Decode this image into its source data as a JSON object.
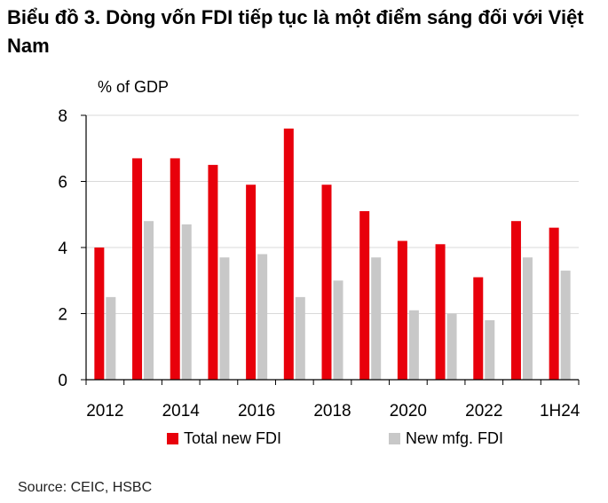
{
  "title": "Biểu đồ 3. Dòng vốn FDI tiếp tục là một điểm sáng đối với Việt Nam",
  "source": "Source: CEIC, HSBC",
  "chart_data": {
    "type": "bar",
    "ylabel": "% of GDP",
    "ylim": [
      0,
      8
    ],
    "yticks": [
      "0",
      "2",
      "4",
      "6",
      "8"
    ],
    "grid": true,
    "legend_position": "bottom",
    "categories": [
      "2012",
      "2013",
      "2014",
      "2015",
      "2016",
      "2017",
      "2018",
      "2019",
      "2020",
      "2021",
      "2022",
      "2023",
      "1H24"
    ],
    "xtick_labels": [
      "2012",
      "2014",
      "2016",
      "2018",
      "2020",
      "2022",
      "1H24"
    ],
    "series": [
      {
        "name": "Total new FDI",
        "color": "#e8000b",
        "values": [
          4.0,
          6.7,
          6.7,
          6.5,
          5.9,
          7.6,
          5.9,
          5.1,
          4.2,
          4.1,
          3.1,
          4.8,
          4.6
        ]
      },
      {
        "name": "New mfg. FDI",
        "color": "#c8c8c8",
        "values": [
          2.5,
          4.8,
          4.7,
          3.7,
          3.8,
          2.5,
          3.0,
          3.7,
          2.1,
          2.0,
          1.8,
          3.7,
          3.3
        ]
      }
    ]
  }
}
